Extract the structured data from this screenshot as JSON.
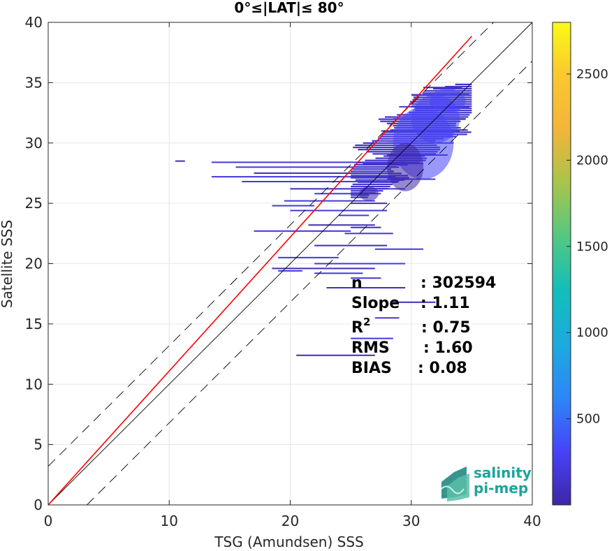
{
  "chart_data": {
    "type": "heatmap",
    "title": "0°≤|LAT|≤ 80°",
    "xlabel": "TSG (Amundsen) SSS",
    "ylabel": "Satellite SSS",
    "xlim": [
      0,
      40
    ],
    "ylim": [
      0,
      40
    ],
    "xticks": [
      "0",
      "10",
      "20",
      "30",
      "40"
    ],
    "yticks": [
      "0",
      "5",
      "10",
      "15",
      "20",
      "25",
      "30",
      "35",
      "40"
    ],
    "grid": true,
    "colorbar": {
      "range": [
        0,
        2800
      ],
      "ticks": [
        "500",
        "1000",
        "1500",
        "2000",
        "2500"
      ],
      "colormap": [
        "#3e26a8",
        "#4743f8",
        "#2d87f7",
        "#1caadf",
        "#12beb9",
        "#53c882",
        "#a8c44a",
        "#f2b53a",
        "#fac72f",
        "#f9fb15"
      ]
    },
    "lines": [
      {
        "name": "1:1",
        "slope": 1,
        "intercept": 0,
        "style": "solid",
        "color": "#000000"
      },
      {
        "name": "1:1 + 3.2",
        "slope": 1,
        "intercept": 3.2,
        "style": "dashed",
        "color": "#000000"
      },
      {
        "name": "1:1 - 3.2",
        "slope": 1,
        "intercept": -3.2,
        "style": "dashed",
        "color": "#000000"
      },
      {
        "name": "regression",
        "slope": 1.11,
        "intercept": 0,
        "style": "solid",
        "color": "#ff0000",
        "x_range": [
          0,
          35
        ]
      }
    ],
    "stats": [
      {
        "label": "n",
        "value": ": 302594"
      },
      {
        "label": "Slope",
        "value": ": 1.11"
      },
      {
        "label": "R",
        "sup": "2",
        "value": ": 0.75"
      },
      {
        "label": "RMS",
        "value": ": 1.60"
      },
      {
        "label": "BIAS",
        "value": ": 0.08"
      }
    ],
    "density_segments": [
      [
        10.5,
        28.5,
        11.3
      ],
      [
        13.5,
        28.4,
        29.5
      ],
      [
        15.5,
        28.0,
        29.0
      ],
      [
        17.0,
        27.5,
        28.5
      ],
      [
        13.5,
        27.2,
        28.7
      ],
      [
        16.0,
        26.8,
        29.0
      ],
      [
        20.0,
        26.2,
        28.0
      ],
      [
        22.0,
        25.8,
        27.5
      ],
      [
        19.5,
        25.2,
        27.0
      ],
      [
        25.0,
        25.0,
        28.0
      ],
      [
        18.5,
        24.8,
        22.0
      ],
      [
        20.0,
        24.4,
        28.0
      ],
      [
        21.5,
        23.2,
        27.0
      ],
      [
        17.0,
        22.7,
        25.0
      ],
      [
        24.5,
        22.5,
        28.5
      ],
      [
        22.0,
        21.5,
        28.0
      ],
      [
        27.0,
        21.2,
        31.0
      ],
      [
        19.0,
        20.5,
        24.0
      ],
      [
        18.5,
        19.6,
        27.0
      ],
      [
        22.0,
        19.2,
        26.0
      ],
      [
        25.0,
        18.8,
        27.5
      ],
      [
        23.0,
        18.0,
        29.5
      ],
      [
        22.0,
        20.0,
        29.5
      ],
      [
        19.0,
        19.4,
        21.0
      ],
      [
        20.5,
        12.4,
        27.0
      ],
      [
        27.0,
        15.5,
        29.0
      ],
      [
        25.0,
        13.8,
        28.5
      ],
      [
        28.5,
        16.8,
        32.0
      ],
      [
        26.5,
        26.2,
        29.5
      ],
      [
        28.0,
        27.0,
        32.0
      ],
      [
        28.0,
        29.0,
        33.0
      ],
      [
        28.0,
        30.0,
        33.5
      ],
      [
        27.5,
        31.0,
        34.0
      ],
      [
        28.5,
        32.0,
        34.5
      ],
      [
        29.0,
        33.0,
        34.8
      ],
      [
        30.0,
        34.0,
        34.8
      ],
      [
        31.0,
        34.6,
        34.2
      ],
      [
        26.0,
        28.3,
        31.0
      ],
      [
        24.0,
        24.0,
        26.5
      ],
      [
        25.0,
        23.0,
        27.5
      ]
    ],
    "density_blobs": [
      {
        "x": 31,
        "y": 30,
        "rx": 2.5,
        "ry": 3.0,
        "level": 0.12
      },
      {
        "x": 32,
        "y": 32,
        "rx": 2.0,
        "ry": 2.0,
        "level": 0.16
      },
      {
        "x": 33,
        "y": 33.5,
        "rx": 1.5,
        "ry": 1.0,
        "level": 0.14
      },
      {
        "x": 29.5,
        "y": 28,
        "rx": 1.5,
        "ry": 2.0,
        "level": 0.1
      },
      {
        "x": 26.5,
        "y": 25.8,
        "rx": 0.8,
        "ry": 0.6,
        "level": 0.1
      }
    ]
  },
  "logo": {
    "line1": "salinity",
    "line2": "pi-mep"
  }
}
